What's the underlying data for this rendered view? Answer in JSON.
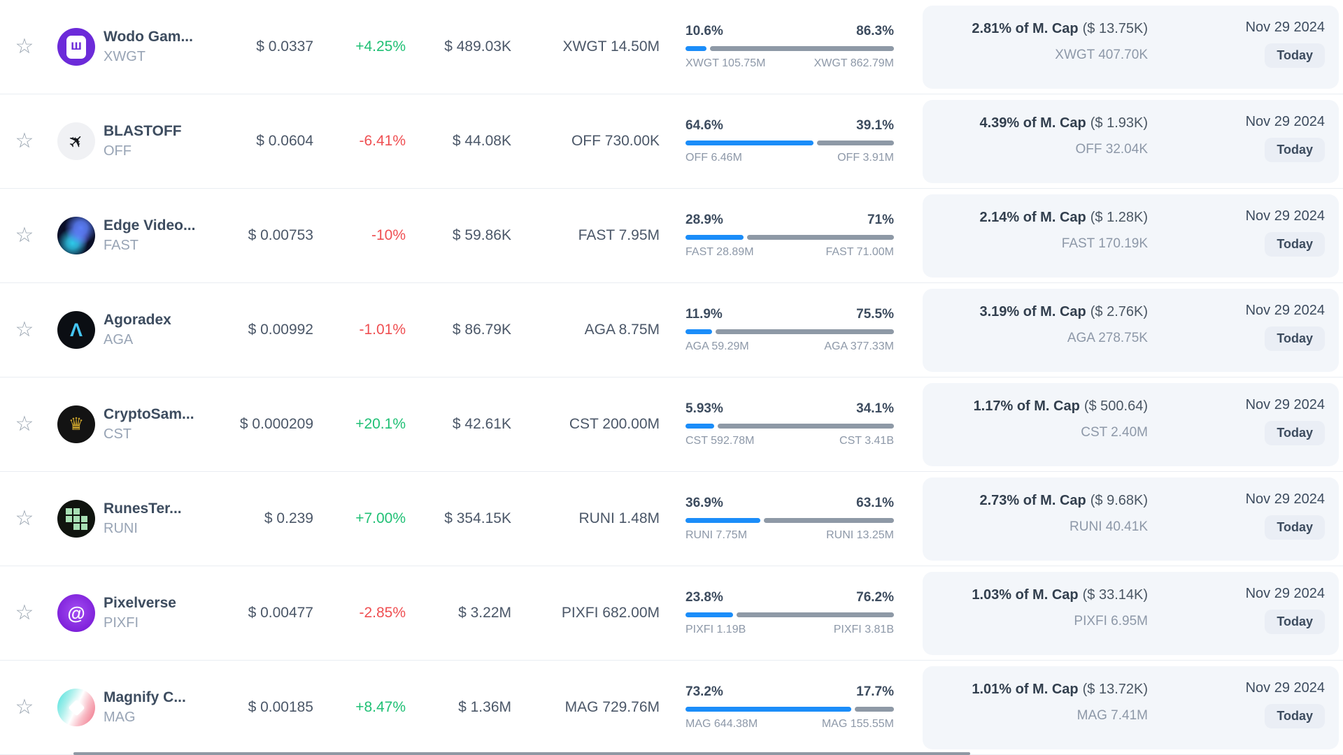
{
  "colors": {
    "accent_blue": "#1b8df9",
    "bar_gray": "#8e99a6",
    "positive": "#20c075",
    "negative": "#ef4f52",
    "card_bg": "#f3f6fa",
    "badge_bg": "#eaeef5"
  },
  "table": {
    "rows": [
      {
        "name": "Wodo Gam...",
        "symbol": "XWGT",
        "logo": "xwgt",
        "price": "$ 0.0337",
        "change": "+4.25%",
        "volume": "$ 489.03K",
        "amount": "XWGT 14.50M",
        "bar": {
          "left_pct": "10.6%",
          "right_pct": "86.3%",
          "left_label": "XWGT 105.75M",
          "right_label": "XWGT 862.79M"
        },
        "mcap": {
          "headline": "2.81% of M. Cap",
          "paren": "($ 13.75K)",
          "sub": "XWGT 407.70K"
        },
        "date": "Nov 29 2024",
        "badge": "Today"
      },
      {
        "name": "BLASTOFF",
        "symbol": "OFF",
        "logo": "off",
        "price": "$ 0.0604",
        "change": "-6.41%",
        "volume": "$ 44.08K",
        "amount": "OFF 730.00K",
        "bar": {
          "left_pct": "64.6%",
          "right_pct": "39.1%",
          "left_label": "OFF 6.46M",
          "right_label": "OFF 3.91M"
        },
        "mcap": {
          "headline": "4.39% of M. Cap",
          "paren": "($ 1.93K)",
          "sub": "OFF 32.04K"
        },
        "date": "Nov 29 2024",
        "badge": "Today"
      },
      {
        "name": "Edge Video...",
        "symbol": "FAST",
        "logo": "fast",
        "price": "$ 0.00753",
        "change": "-10%",
        "volume": "$ 59.86K",
        "amount": "FAST 7.95M",
        "bar": {
          "left_pct": "28.9%",
          "right_pct": "71%",
          "left_label": "FAST 28.89M",
          "right_label": "FAST 71.00M"
        },
        "mcap": {
          "headline": "2.14% of M. Cap",
          "paren": "($ 1.28K)",
          "sub": "FAST 170.19K"
        },
        "date": "Nov 29 2024",
        "badge": "Today"
      },
      {
        "name": "Agoradex",
        "symbol": "AGA",
        "logo": "aga",
        "price": "$ 0.00992",
        "change": "-1.01%",
        "volume": "$ 86.79K",
        "amount": "AGA 8.75M",
        "bar": {
          "left_pct": "11.9%",
          "right_pct": "75.5%",
          "left_label": "AGA 59.29M",
          "right_label": "AGA 377.33M"
        },
        "mcap": {
          "headline": "3.19% of M. Cap",
          "paren": "($ 2.76K)",
          "sub": "AGA 278.75K"
        },
        "date": "Nov 29 2024",
        "badge": "Today"
      },
      {
        "name": "CryptoSam...",
        "symbol": "CST",
        "logo": "cst",
        "price": "$ 0.000209",
        "change": "+20.1%",
        "volume": "$ 42.61K",
        "amount": "CST 200.00M",
        "bar": {
          "left_pct": "5.93%",
          "right_pct": "34.1%",
          "left_label": "CST 592.78M",
          "right_label": "CST 3.41B"
        },
        "mcap": {
          "headline": "1.17% of M. Cap",
          "paren": "($ 500.64)",
          "sub": "CST 2.40M"
        },
        "date": "Nov 29 2024",
        "badge": "Today"
      },
      {
        "name": "RunesTer...",
        "symbol": "RUNI",
        "logo": "runi",
        "price": "$ 0.239",
        "change": "+7.00%",
        "volume": "$ 354.15K",
        "amount": "RUNI 1.48M",
        "bar": {
          "left_pct": "36.9%",
          "right_pct": "63.1%",
          "left_label": "RUNI 7.75M",
          "right_label": "RUNI 13.25M"
        },
        "mcap": {
          "headline": "2.73% of M. Cap",
          "paren": "($ 9.68K)",
          "sub": "RUNI 40.41K"
        },
        "date": "Nov 29 2024",
        "badge": "Today"
      },
      {
        "name": "Pixelverse",
        "symbol": "PIXFI",
        "logo": "pixfi",
        "price": "$ 0.00477",
        "change": "-2.85%",
        "volume": "$ 3.22M",
        "amount": "PIXFI 682.00M",
        "bar": {
          "left_pct": "23.8%",
          "right_pct": "76.2%",
          "left_label": "PIXFI 1.19B",
          "right_label": "PIXFI 3.81B"
        },
        "mcap": {
          "headline": "1.03% of M. Cap",
          "paren": "($ 33.14K)",
          "sub": "PIXFI 6.95M"
        },
        "date": "Nov 29 2024",
        "badge": "Today"
      },
      {
        "name": "Magnify C...",
        "symbol": "MAG",
        "logo": "mag",
        "price": "$ 0.00185",
        "change": "+8.47%",
        "volume": "$ 1.36M",
        "amount": "MAG 729.76M",
        "bar": {
          "left_pct": "73.2%",
          "right_pct": "17.7%",
          "left_label": "MAG 644.38M",
          "right_label": "MAG 155.55M"
        },
        "mcap": {
          "headline": "1.01% of M. Cap",
          "paren": "($ 13.72K)",
          "sub": "MAG 7.41M"
        },
        "date": "Nov 29 2024",
        "badge": "Today"
      }
    ]
  }
}
